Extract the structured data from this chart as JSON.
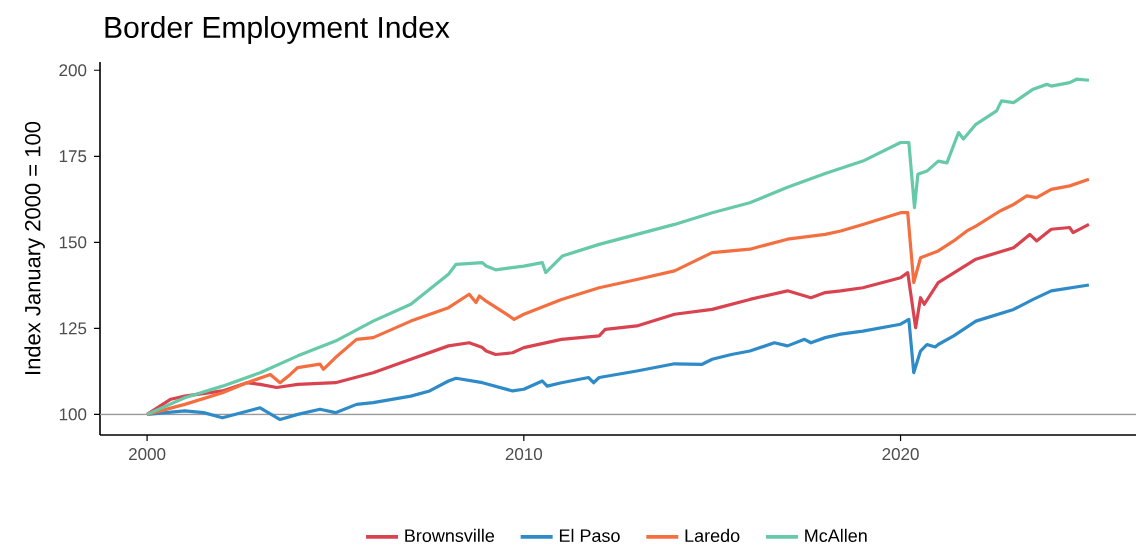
{
  "chart_data": {
    "type": "line",
    "title": "Border Employment Index",
    "ylabel": "Index January 2000 = 100",
    "xlim": [
      1998.75,
      2026.25
    ],
    "ylim": [
      94,
      202.4
    ],
    "xticks": [
      2000,
      2010,
      2020
    ],
    "yticks": [
      100,
      125,
      150,
      175,
      200
    ],
    "grid": false,
    "legend": "bottom",
    "marker": "none",
    "line_style": "solid",
    "ref_lines": [
      {
        "axis": "y",
        "value": 100,
        "color": "#999999"
      }
    ],
    "series": [
      {
        "name": "Brownsville",
        "color": "#d9434f",
        "x": [
          2000,
          2000.63,
          2001,
          2002,
          2002.65,
          2003,
          2003.44,
          2004,
          2005,
          2006,
          2007,
          2008,
          2008.55,
          2008.9,
          2009,
          2009.25,
          2009.7,
          2010,
          2011,
          2012,
          2012.16,
          2013,
          2014,
          2015,
          2016,
          2017,
          2017.62,
          2018,
          2018.41,
          2019,
          2020,
          2020.19,
          2020.4,
          2020.53,
          2020.63,
          2021,
          2021.5,
          2022,
          2023,
          2023.43,
          2023.61,
          2024,
          2024.49,
          2024.58,
          2025
        ],
        "values": [
          100,
          104.4,
          105.3,
          106.8,
          109.2,
          108.7,
          107.8,
          108.7,
          109.2,
          112.1,
          116,
          119.9,
          120.8,
          119.4,
          118.4,
          117.4,
          117.9,
          119.4,
          121.8,
          122.8,
          124.7,
          125.7,
          129.1,
          130.5,
          133.4,
          135.9,
          133.9,
          135.4,
          135.9,
          136.8,
          139.7,
          141.2,
          125.2,
          133.9,
          132,
          138.3,
          141.7,
          145.1,
          148.4,
          152.3,
          150.4,
          153.8,
          154.3,
          152.8,
          155.2
        ]
      },
      {
        "name": "El Paso",
        "color": "#2e8bc8",
        "x": [
          2000,
          2001,
          2001.5,
          2002,
          2003,
          2003.53,
          2004,
          2004.59,
          2005,
          2005.56,
          2006,
          2007,
          2007.5,
          2008,
          2008.2,
          2008.9,
          2009,
          2009.7,
          2010,
          2010.49,
          2010.62,
          2011,
          2011.72,
          2011.85,
          2012,
          2013,
          2014,
          2014.72,
          2015,
          2015.51,
          2016,
          2016.65,
          2017,
          2017.45,
          2017.62,
          2018,
          2018.41,
          2019,
          2020,
          2020.22,
          2020.35,
          2020.53,
          2020.7,
          2020.92,
          2021,
          2021.41,
          2022,
          2023,
          2023.52,
          2024,
          2025
        ],
        "values": [
          100,
          101,
          100.5,
          99,
          101.9,
          98.5,
          100,
          101.5,
          100.5,
          102.9,
          103.4,
          105.3,
          106.8,
          109.7,
          110.5,
          109.2,
          108.9,
          106.8,
          107.3,
          109.7,
          108.2,
          109.2,
          110.7,
          109.2,
          110.7,
          112.6,
          114.7,
          114.5,
          116,
          117.4,
          118.4,
          120.8,
          119.9,
          121.8,
          120.8,
          122.3,
          123.3,
          124.2,
          126.2,
          127.6,
          112.1,
          118.4,
          120.3,
          119.6,
          120.3,
          122.8,
          127.1,
          130.5,
          133.4,
          135.9,
          137.6
        ]
      },
      {
        "name": "Laredo",
        "color": "#f46f40",
        "x": [
          2000,
          2001,
          2002,
          2002.65,
          2003.27,
          2003.53,
          2003.8,
          2004,
          2004.59,
          2004.68,
          2005,
          2005.56,
          2006,
          2007,
          2008,
          2008.55,
          2008.73,
          2008.82,
          2009,
          2009.61,
          2009.74,
          2010,
          2011,
          2012,
          2013,
          2014,
          2015,
          2016,
          2017,
          2018,
          2018.41,
          2019,
          2020,
          2020.19,
          2020.35,
          2020.53,
          2021,
          2021.41,
          2021.76,
          2022,
          2022.64,
          2023,
          2023.35,
          2023.61,
          2024,
          2024.49,
          2025
        ],
        "values": [
          100,
          102.9,
          106.3,
          109.2,
          111.6,
          109.2,
          111.6,
          113.6,
          114.6,
          113.1,
          116.5,
          121.8,
          122.3,
          127.1,
          131,
          134.9,
          132.5,
          134.4,
          132.9,
          128.6,
          127.6,
          129.1,
          133.4,
          136.8,
          139.2,
          141.7,
          147,
          148,
          150.9,
          152.3,
          153.3,
          155.2,
          158.6,
          158.6,
          138.3,
          145.5,
          147.5,
          150.4,
          153.3,
          154.7,
          159.1,
          161,
          163.5,
          163,
          165.4,
          166.4,
          168.3
        ]
      },
      {
        "name": "McAllen",
        "color": "#66c9a8",
        "x": [
          2000,
          2001,
          2002,
          2003,
          2004,
          2005,
          2006,
          2007,
          2008,
          2008.2,
          2008.9,
          2009,
          2009.25,
          2010,
          2010.49,
          2010.58,
          2011.02,
          2012,
          2013,
          2014,
          2015,
          2016,
          2017,
          2018,
          2019,
          2020,
          2020.22,
          2020.37,
          2020.46,
          2020.7,
          2021,
          2021.23,
          2021.54,
          2021.67,
          2022,
          2022.55,
          2022.68,
          2023,
          2023.52,
          2023.88,
          2024,
          2024.49,
          2024.67,
          2025
        ],
        "values": [
          100,
          104.8,
          108.2,
          112.1,
          117,
          121.3,
          127.1,
          132,
          140.7,
          143.6,
          144.1,
          143.1,
          142,
          143.1,
          144.1,
          141.2,
          146,
          149.4,
          152.3,
          155.2,
          158.6,
          161.5,
          166,
          170,
          173.6,
          179,
          179,
          160.1,
          169.8,
          170.7,
          173.6,
          173.1,
          181.9,
          180,
          184.3,
          188.2,
          191.1,
          190.6,
          194.5,
          195.9,
          195.4,
          196.4,
          197.4,
          197.1
        ]
      }
    ]
  }
}
